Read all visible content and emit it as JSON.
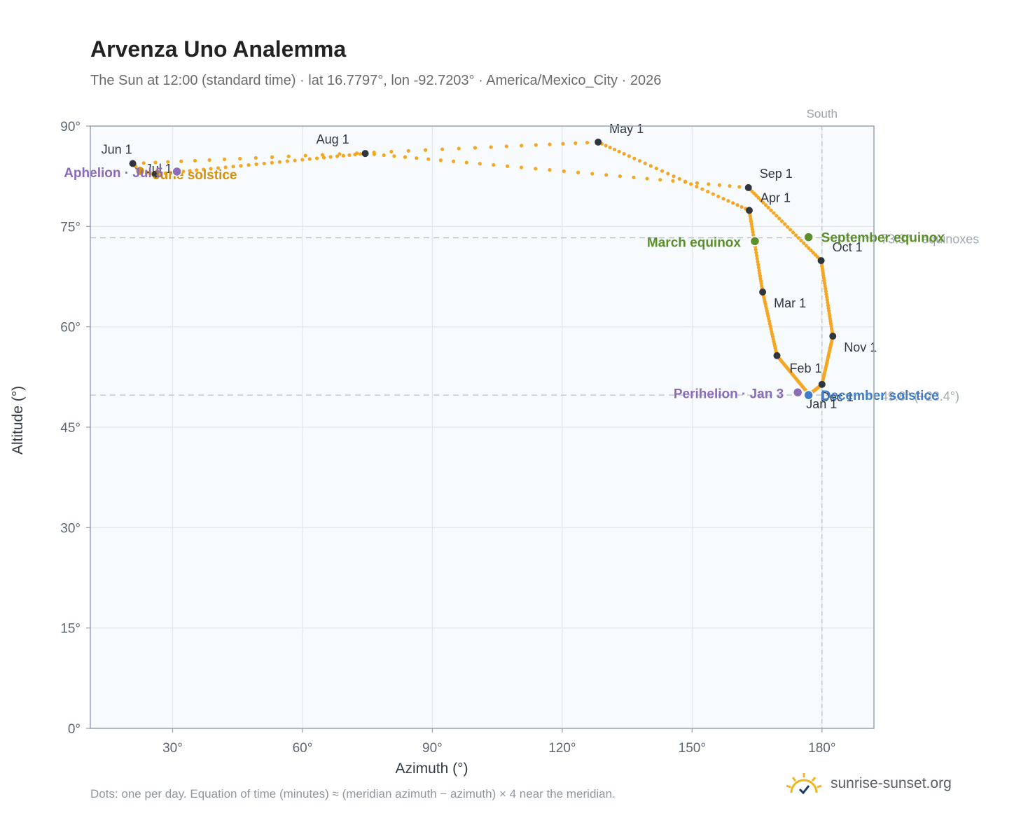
{
  "title": "Arvenza Uno Analemma",
  "subtitle": "The Sun at 12:00 (standard time) · lat 16.7797°, lon -92.7203° · America/Mexico_City · 2026",
  "footnote": "Dots: one per day. Equation of time (minutes) ≈ (meridian azimuth − azimuth) × 4 near the meridian.",
  "brand": "sunrise-sunset.org",
  "colors": {
    "path": "#f5a623",
    "month_marker": "#2f3640",
    "equinox": "#5a8f29",
    "solstice_june": "#d4920a",
    "solstice_december": "#3d7dca",
    "apsis": "#8c6bb8",
    "plot_bg": "#f8fbfe",
    "grid": "#e3e8ee",
    "ref_line": "#b7c0c8"
  },
  "chart_data": {
    "type": "scatter",
    "xlabel": "Azimuth (°)",
    "ylabel": "Altitude (°)",
    "xlim": [
      11,
      192
    ],
    "ylim": [
      0,
      90
    ],
    "xticks": [
      30,
      60,
      90,
      120,
      150,
      180
    ],
    "xtick_labels": [
      "30°",
      "60°",
      "90°",
      "120°",
      "150°",
      "180°"
    ],
    "yticks": [
      0,
      15,
      30,
      45,
      60,
      75,
      90
    ],
    "ytick_labels": [
      "0°",
      "15°",
      "30°",
      "45°",
      "60°",
      "75°",
      "90°"
    ],
    "grid": true,
    "meridian": {
      "azimuth": 180,
      "label": "South"
    },
    "reference_lines": [
      {
        "altitude": 73.3,
        "label": "73.3° · equinoxes"
      },
      {
        "altitude": 49.8,
        "label": "49.8° (−23.4°)"
      }
    ],
    "month_markers": [
      {
        "label": "Jan 1",
        "azimuth": 177.0,
        "altitude": 49.9
      },
      {
        "label": "Feb 1",
        "azimuth": 169.6,
        "altitude": 55.7
      },
      {
        "label": "Mar 1",
        "azimuth": 166.3,
        "altitude": 65.2
      },
      {
        "label": "Apr 1",
        "azimuth": 163.2,
        "altitude": 77.4
      },
      {
        "label": "May 1",
        "azimuth": 128.3,
        "altitude": 87.6
      },
      {
        "label": "Jun 1",
        "azimuth": 20.8,
        "altitude": 84.4
      },
      {
        "label": "Jul 1",
        "azimuth": 26.0,
        "altitude": 82.8
      },
      {
        "label": "Aug 1",
        "azimuth": 74.5,
        "altitude": 85.9
      },
      {
        "label": "Sep 1",
        "azimuth": 163.0,
        "altitude": 80.8
      },
      {
        "label": "Oct 1",
        "azimuth": 179.8,
        "altitude": 69.9
      },
      {
        "label": "Nov 1",
        "azimuth": 182.5,
        "altitude": 58.6
      },
      {
        "label": "Dec 1",
        "azimuth": 180.0,
        "altitude": 51.4
      }
    ],
    "events": [
      {
        "label": "March equinox",
        "azimuth": 164.5,
        "altitude": 72.8,
        "kind": "equinox"
      },
      {
        "label": "September equinox",
        "azimuth": 176.9,
        "altitude": 73.4,
        "kind": "equinox"
      },
      {
        "label": "June solstice",
        "azimuth": 22.5,
        "altitude": 83.3,
        "kind": "solstice_june"
      },
      {
        "label": "December solstice",
        "azimuth": 176.9,
        "altitude": 49.8,
        "kind": "solstice_december"
      },
      {
        "label": "Aphelion · Jul 5",
        "azimuth": 31.0,
        "altitude": 83.2,
        "kind": "apsis"
      },
      {
        "label": "Perihelion · Jan 3",
        "azimuth": 174.4,
        "altitude": 50.2,
        "kind": "apsis"
      }
    ]
  }
}
